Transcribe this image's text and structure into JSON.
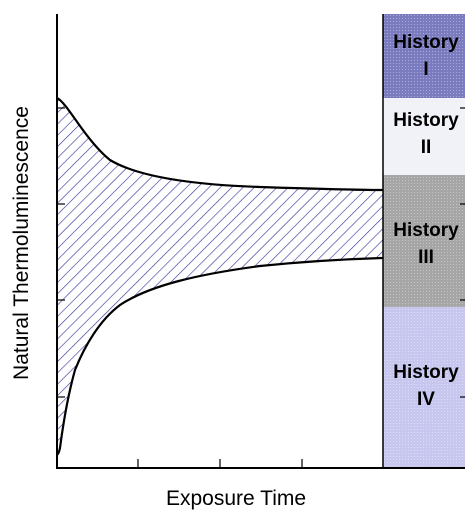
{
  "figure": {
    "xlabel": "Exposure Time",
    "ylabel": "Natural Thermoluminescence"
  },
  "histories": [
    {
      "line1": "History",
      "line2": "I",
      "color": "#7b7bbf",
      "shade": "dark purple-blue"
    },
    {
      "line1": "History",
      "line2": "II",
      "color": "#f1f1f8",
      "shade": "very light lavender"
    },
    {
      "line1": "History",
      "line2": "III",
      "color": "#a6a6a6",
      "shade": "gray"
    },
    {
      "line1": "History",
      "line2": "IV",
      "color": "#c6c6ee",
      "shade": "light lavender-blue"
    }
  ],
  "colors": {
    "hatch": "#3a3aa0",
    "curve": "#000000",
    "frame": "#000000"
  }
}
